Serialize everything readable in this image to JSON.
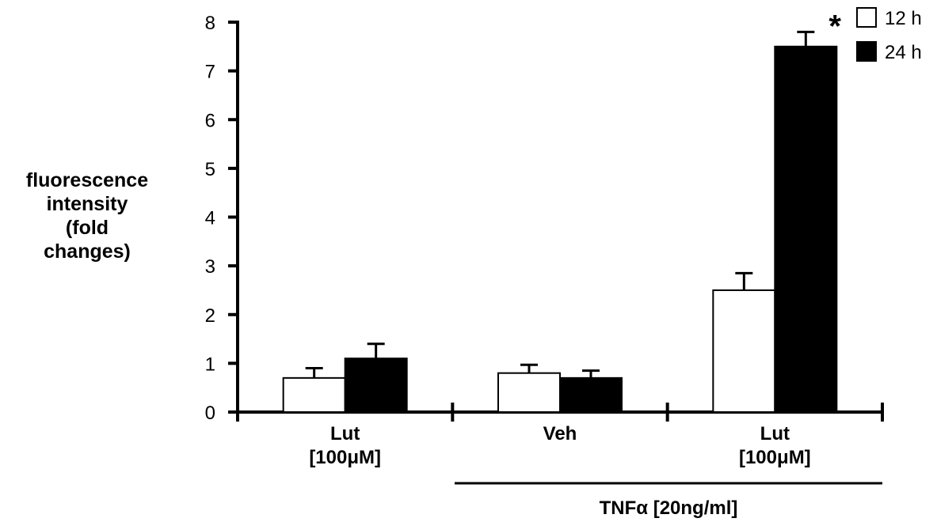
{
  "chart_data": {
    "type": "bar",
    "title": "",
    "ylabel_lines": [
      "fluorescence",
      "intensity",
      "(fold",
      "changes)"
    ],
    "ylim": [
      0,
      8
    ],
    "yticks": [
      "0",
      "1",
      "2",
      "3",
      "4",
      "5",
      "6",
      "7",
      "8"
    ],
    "categories": [
      {
        "lines": [
          "Lut",
          "[100μM]"
        ]
      },
      {
        "lines": [
          "Veh"
        ]
      },
      {
        "lines": [
          "Lut",
          "[100μM]"
        ]
      }
    ],
    "group_label": "TNFα [20ng/ml]",
    "series": [
      {
        "name": "12 h",
        "color": "#ffffff",
        "values": [
          0.7,
          0.8,
          2.5
        ],
        "errors": [
          0.2,
          0.17,
          0.35
        ]
      },
      {
        "name": "24 h",
        "color": "#000000",
        "values": [
          1.1,
          0.7,
          7.5
        ],
        "errors": [
          0.3,
          0.15,
          0.3
        ]
      }
    ],
    "annotations": [
      {
        "text": "*",
        "category": 2,
        "series": 1
      }
    ],
    "legend_position": "top-right",
    "grid": false
  }
}
